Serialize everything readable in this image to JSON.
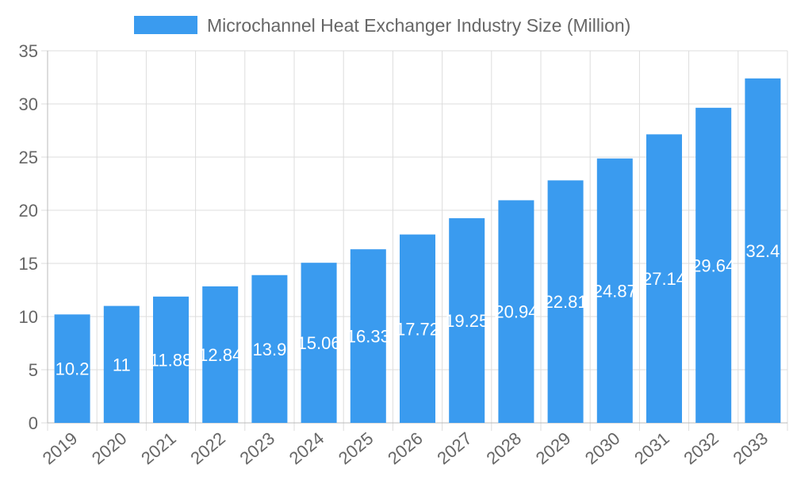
{
  "chart_data": {
    "type": "bar",
    "title": "",
    "xlabel": "",
    "ylabel": "",
    "legend": {
      "position": "top",
      "entries": [
        "Microchannel Heat Exchanger Industry Size (Million)"
      ]
    },
    "categories": [
      "2019",
      "2020",
      "2021",
      "2022",
      "2023",
      "2024",
      "2025",
      "2026",
      "2027",
      "2028",
      "2029",
      "2030",
      "2031",
      "2032",
      "2033"
    ],
    "series": [
      {
        "name": "Microchannel Heat Exchanger Industry Size (Million)",
        "values": [
          10.2,
          11,
          11.88,
          12.84,
          13.9,
          15.06,
          16.33,
          17.72,
          19.25,
          20.94,
          22.81,
          24.87,
          27.14,
          29.64,
          32.4
        ],
        "color": "#3a9bef"
      }
    ],
    "ylim": [
      0,
      35
    ],
    "yticks": [
      0,
      5,
      10,
      15,
      20,
      25,
      30,
      35
    ],
    "grid": true,
    "data_labels": true
  }
}
